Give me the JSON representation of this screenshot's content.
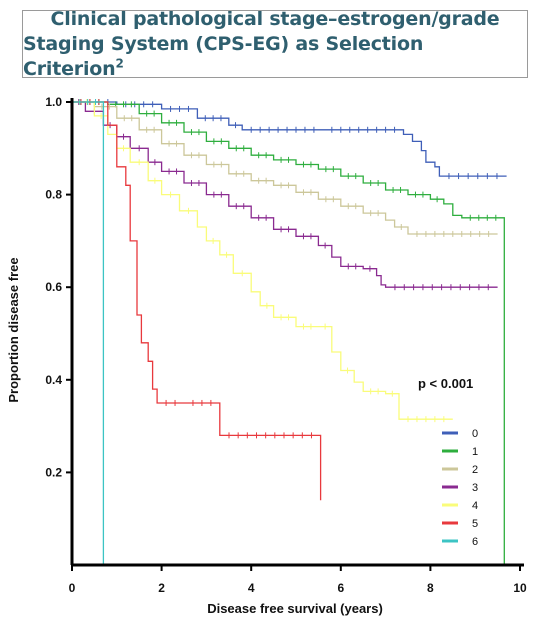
{
  "title": {
    "line1": "Clinical pathological stage–estrogen/grade",
    "line2": "Staging System (CPS-EG) as Selection Criterion",
    "superscript": "2"
  },
  "chart_data": {
    "type": "line",
    "step": true,
    "xlabel": "Disease free survival (years)",
    "ylabel": "Proportion disease free",
    "xlim": [
      0,
      10
    ],
    "ylim": [
      0.0,
      1.0
    ],
    "xticks": [
      0,
      2,
      4,
      6,
      8,
      10
    ],
    "yticks": [
      0.2,
      0.4,
      0.6,
      0.8,
      1.0
    ],
    "ytick_labels": [
      "0.2",
      "0.4",
      "0.6",
      "0.8",
      "1.0"
    ],
    "annotation": "p < 0.001",
    "legend_position": "bottom-right",
    "series": [
      {
        "name": "0",
        "color": "#3f5fb8",
        "points": [
          [
            0,
            1.0
          ],
          [
            1.0,
            0.995
          ],
          [
            2.0,
            0.985
          ],
          [
            2.8,
            0.965
          ],
          [
            3.5,
            0.95
          ],
          [
            3.8,
            0.94
          ],
          [
            5.6,
            0.94
          ],
          [
            7.4,
            0.93
          ],
          [
            7.6,
            0.915
          ],
          [
            7.8,
            0.895
          ],
          [
            7.9,
            0.87
          ],
          [
            8.1,
            0.86
          ],
          [
            8.2,
            0.84
          ],
          [
            9.7,
            0.84
          ]
        ]
      },
      {
        "name": "1",
        "color": "#2eae3e",
        "points": [
          [
            0,
            1.0
          ],
          [
            0.8,
            0.995
          ],
          [
            1.5,
            0.975
          ],
          [
            2.0,
            0.955
          ],
          [
            2.5,
            0.935
          ],
          [
            3.0,
            0.915
          ],
          [
            3.5,
            0.9
          ],
          [
            4.0,
            0.885
          ],
          [
            4.5,
            0.875
          ],
          [
            5.0,
            0.865
          ],
          [
            5.5,
            0.855
          ],
          [
            6.0,
            0.84
          ],
          [
            6.5,
            0.825
          ],
          [
            7.0,
            0.81
          ],
          [
            7.5,
            0.8
          ],
          [
            8.0,
            0.79
          ],
          [
            8.3,
            0.78
          ],
          [
            8.5,
            0.755
          ],
          [
            8.7,
            0.75
          ],
          [
            9.65,
            0.75
          ],
          [
            9.65,
            0.0
          ]
        ]
      },
      {
        "name": "2",
        "color": "#ccc79a",
        "points": [
          [
            0,
            1.0
          ],
          [
            0.5,
            0.99
          ],
          [
            1.0,
            0.965
          ],
          [
            1.5,
            0.94
          ],
          [
            2.0,
            0.91
          ],
          [
            2.5,
            0.885
          ],
          [
            3.0,
            0.865
          ],
          [
            3.5,
            0.845
          ],
          [
            4.0,
            0.83
          ],
          [
            4.5,
            0.82
          ],
          [
            5.0,
            0.805
          ],
          [
            5.5,
            0.79
          ],
          [
            6.0,
            0.775
          ],
          [
            6.5,
            0.76
          ],
          [
            7.0,
            0.745
          ],
          [
            7.2,
            0.73
          ],
          [
            7.5,
            0.715
          ],
          [
            9.5,
            0.715
          ]
        ]
      },
      {
        "name": "3",
        "color": "#8a2a90",
        "points": [
          [
            0,
            1.0
          ],
          [
            0.3,
            0.98
          ],
          [
            0.7,
            0.95
          ],
          [
            1.0,
            0.925
          ],
          [
            1.3,
            0.9
          ],
          [
            1.7,
            0.87
          ],
          [
            2.0,
            0.85
          ],
          [
            2.5,
            0.825
          ],
          [
            3.0,
            0.8
          ],
          [
            3.5,
            0.775
          ],
          [
            4.0,
            0.75
          ],
          [
            4.5,
            0.725
          ],
          [
            5.0,
            0.71
          ],
          [
            5.5,
            0.69
          ],
          [
            5.8,
            0.665
          ],
          [
            6.0,
            0.645
          ],
          [
            6.5,
            0.64
          ],
          [
            6.8,
            0.625
          ],
          [
            6.9,
            0.605
          ],
          [
            7.0,
            0.6
          ],
          [
            9.5,
            0.6
          ]
        ]
      },
      {
        "name": "4",
        "color": "#fafc7a",
        "points": [
          [
            0,
            1.0
          ],
          [
            0.5,
            0.97
          ],
          [
            0.8,
            0.93
          ],
          [
            1.0,
            0.9
          ],
          [
            1.3,
            0.87
          ],
          [
            1.7,
            0.83
          ],
          [
            2.0,
            0.8
          ],
          [
            2.4,
            0.765
          ],
          [
            2.8,
            0.73
          ],
          [
            3.0,
            0.7
          ],
          [
            3.3,
            0.67
          ],
          [
            3.6,
            0.63
          ],
          [
            4.0,
            0.59
          ],
          [
            4.2,
            0.56
          ],
          [
            4.5,
            0.535
          ],
          [
            5.0,
            0.515
          ],
          [
            5.5,
            0.515
          ],
          [
            5.8,
            0.46
          ],
          [
            6.0,
            0.42
          ],
          [
            6.3,
            0.395
          ],
          [
            6.5,
            0.375
          ],
          [
            7.0,
            0.37
          ],
          [
            7.3,
            0.315
          ],
          [
            8.5,
            0.315
          ]
        ]
      },
      {
        "name": "5",
        "color": "#e8393d",
        "points": [
          [
            0,
            1.0
          ],
          [
            0.8,
            0.95
          ],
          [
            1.0,
            0.86
          ],
          [
            1.2,
            0.82
          ],
          [
            1.3,
            0.7
          ],
          [
            1.45,
            0.54
          ],
          [
            1.55,
            0.48
          ],
          [
            1.7,
            0.44
          ],
          [
            1.8,
            0.38
          ],
          [
            1.9,
            0.35
          ],
          [
            2.5,
            0.35
          ],
          [
            3.3,
            0.35
          ],
          [
            3.3,
            0.28
          ],
          [
            5.55,
            0.28
          ],
          [
            5.55,
            0.14
          ]
        ]
      },
      {
        "name": "6",
        "color": "#3cc4c4",
        "points": [
          [
            0,
            1.0
          ],
          [
            0.7,
            1.0
          ],
          [
            0.7,
            0.0
          ]
        ]
      }
    ]
  }
}
